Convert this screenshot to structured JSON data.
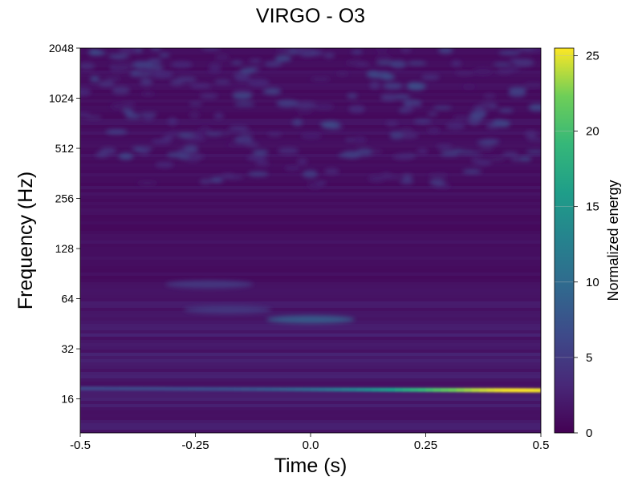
{
  "chart_data": {
    "type": "heatmap",
    "title": "VIRGO - O3",
    "xlabel": "Time (s)",
    "ylabel": "Frequency (Hz)",
    "xlim": [
      -0.5,
      0.5
    ],
    "ylim": [
      10,
      2048
    ],
    "yscale": "log2",
    "xticks": [
      -0.5,
      -0.25,
      0.0,
      0.25,
      0.5
    ],
    "xtick_labels": [
      "-0.5",
      "-0.25",
      "0.0",
      "0.25",
      "0.5"
    ],
    "yticks": [
      16,
      32,
      64,
      128,
      256,
      512,
      1024,
      2048
    ],
    "ytick_labels": [
      "16",
      "32",
      "64",
      "128",
      "256",
      "512",
      "1024",
      "2048"
    ],
    "colorbar": {
      "label": "Normalized energy",
      "colormap": "viridis",
      "range": [
        0,
        25.5
      ],
      "ticks": [
        0,
        5,
        10,
        15,
        20,
        25
      ],
      "tick_labels": [
        "0",
        "5",
        "10",
        "15",
        "20",
        "25"
      ]
    },
    "features": [
      {
        "kind": "chirp-line",
        "t": [
          -0.5,
          0.5
        ],
        "f": [
          18.5,
          18.0
        ],
        "peak_energy": 25.5,
        "peak_t": 0.45
      },
      {
        "kind": "blob",
        "t": 0.0,
        "f": 48,
        "energy": 9
      },
      {
        "kind": "blob",
        "t": -0.22,
        "f": 78,
        "energy": 5
      },
      {
        "kind": "blob",
        "t": -0.18,
        "f": 55,
        "energy": 5
      }
    ]
  }
}
